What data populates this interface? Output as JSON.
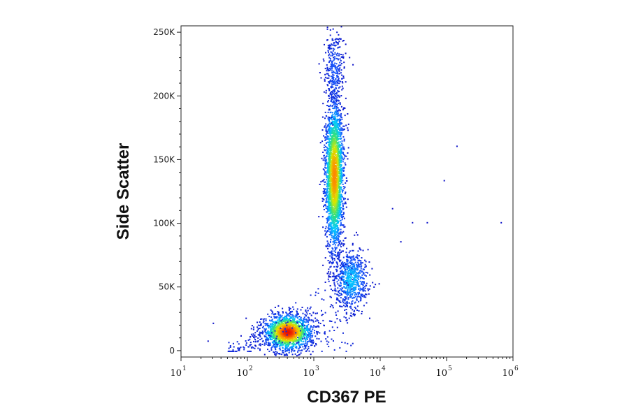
{
  "chart_data": {
    "type": "scatter",
    "style": "flow-cytometry-density-dot-plot",
    "xlabel": "CD367 PE",
    "ylabel": "Side Scatter",
    "x_scale": "log",
    "xlim": [
      10,
      1000000
    ],
    "y_scale": "linear",
    "ylim": [
      -5000,
      255000
    ],
    "x_ticks": [
      {
        "value": 10,
        "base": "10",
        "exp": "1"
      },
      {
        "value": 100,
        "base": "10",
        "exp": "2"
      },
      {
        "value": 1000,
        "base": "10",
        "exp": "3"
      },
      {
        "value": 10000,
        "base": "10",
        "exp": "4"
      },
      {
        "value": 100000,
        "base": "10",
        "exp": "5"
      },
      {
        "value": 1000000,
        "base": "10",
        "exp": "6"
      }
    ],
    "y_ticks": [
      {
        "value": 0,
        "label": "0"
      },
      {
        "value": 50000,
        "label": "50K"
      },
      {
        "value": 100000,
        "label": "100K"
      },
      {
        "value": 150000,
        "label": "150K"
      },
      {
        "value": 200000,
        "label": "200K"
      },
      {
        "value": 250000,
        "label": "250K"
      }
    ],
    "grid": false,
    "legend": "none",
    "colormap": [
      "#0a10c8",
      "#1a5cff",
      "#00c8ff",
      "#30e080",
      "#d8e800",
      "#ff8800",
      "#e81000"
    ],
    "populations": [
      {
        "log10_x_center": 2.6,
        "y_center": 15000,
        "log10_x_sd": 0.18,
        "y_sd": 7000,
        "count": 1700,
        "peak_color": "#e81000"
      },
      {
        "log10_x_center": 3.55,
        "y_center": 56000,
        "log10_x_sd": 0.13,
        "y_sd": 12000,
        "count": 700,
        "peak_color": "#00c8ff"
      },
      {
        "log10_x_center": 3.3,
        "y_center": 138000,
        "log10_x_sd": 0.07,
        "y_sd": 30000,
        "count": 2600,
        "peak_color": "#ff8800"
      },
      {
        "log10_x_center": 3.3,
        "y_center": 220000,
        "log10_x_sd": 0.07,
        "y_sd": 16000,
        "count": 300,
        "peak_color": "#1a5cff"
      }
    ],
    "outliers": [
      {
        "x": 650000,
        "y": 101000
      },
      {
        "x": 140000,
        "y": 161000
      },
      {
        "x": 90000,
        "y": 134000
      },
      {
        "x": 30000,
        "y": 101000
      },
      {
        "x": 50000,
        "y": 101000
      },
      {
        "x": 20000,
        "y": 86000
      },
      {
        "x": 15000,
        "y": 112000
      },
      {
        "x": 3800,
        "y": 225000
      },
      {
        "x": 30,
        "y": 22000
      },
      {
        "x": 25,
        "y": 8000
      }
    ]
  }
}
